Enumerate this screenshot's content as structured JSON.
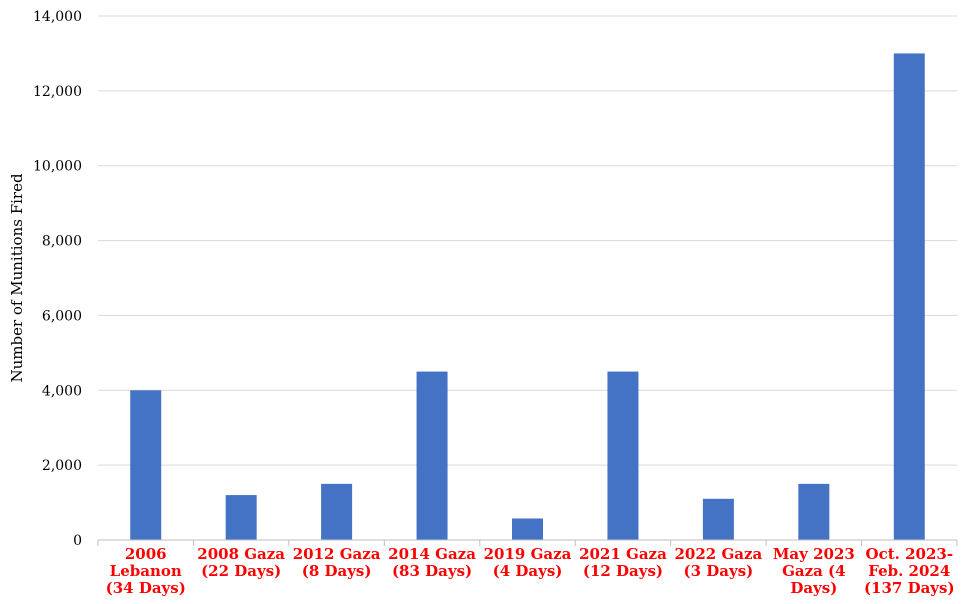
{
  "chart_data": {
    "type": "bar",
    "title": "",
    "xlabel": "",
    "ylabel": "Number of Munitions Fired",
    "ylim": [
      0,
      14000
    ],
    "yticks": [
      "0",
      "2,000",
      "4,000",
      "6,000",
      "8,000",
      "10,000",
      "12,000",
      "14,000"
    ],
    "ytick_values": [
      0,
      2000,
      4000,
      6000,
      8000,
      10000,
      12000,
      14000
    ],
    "grid": true,
    "legend": "none",
    "bar_color": "#4472c4",
    "category_label_color": "#ff0000",
    "categories": [
      [
        "2006",
        "Lebanon",
        "(34 Days)"
      ],
      [
        "2008 Gaza",
        "(22 Days)"
      ],
      [
        "2012 Gaza",
        "(8 Days)"
      ],
      [
        "2014 Gaza",
        "(83 Days)"
      ],
      [
        "2019 Gaza",
        "(4 Days)"
      ],
      [
        "2021 Gaza",
        "(12 Days)"
      ],
      [
        "2022 Gaza",
        "(3 Days)"
      ],
      [
        "May 2023",
        "Gaza (4",
        "Days)"
      ],
      [
        "Oct. 2023-",
        "Feb. 2024",
        "(137 Days)"
      ]
    ],
    "values": [
      4000,
      1200,
      1500,
      4500,
      575,
      4500,
      1100,
      1500,
      13000
    ]
  }
}
